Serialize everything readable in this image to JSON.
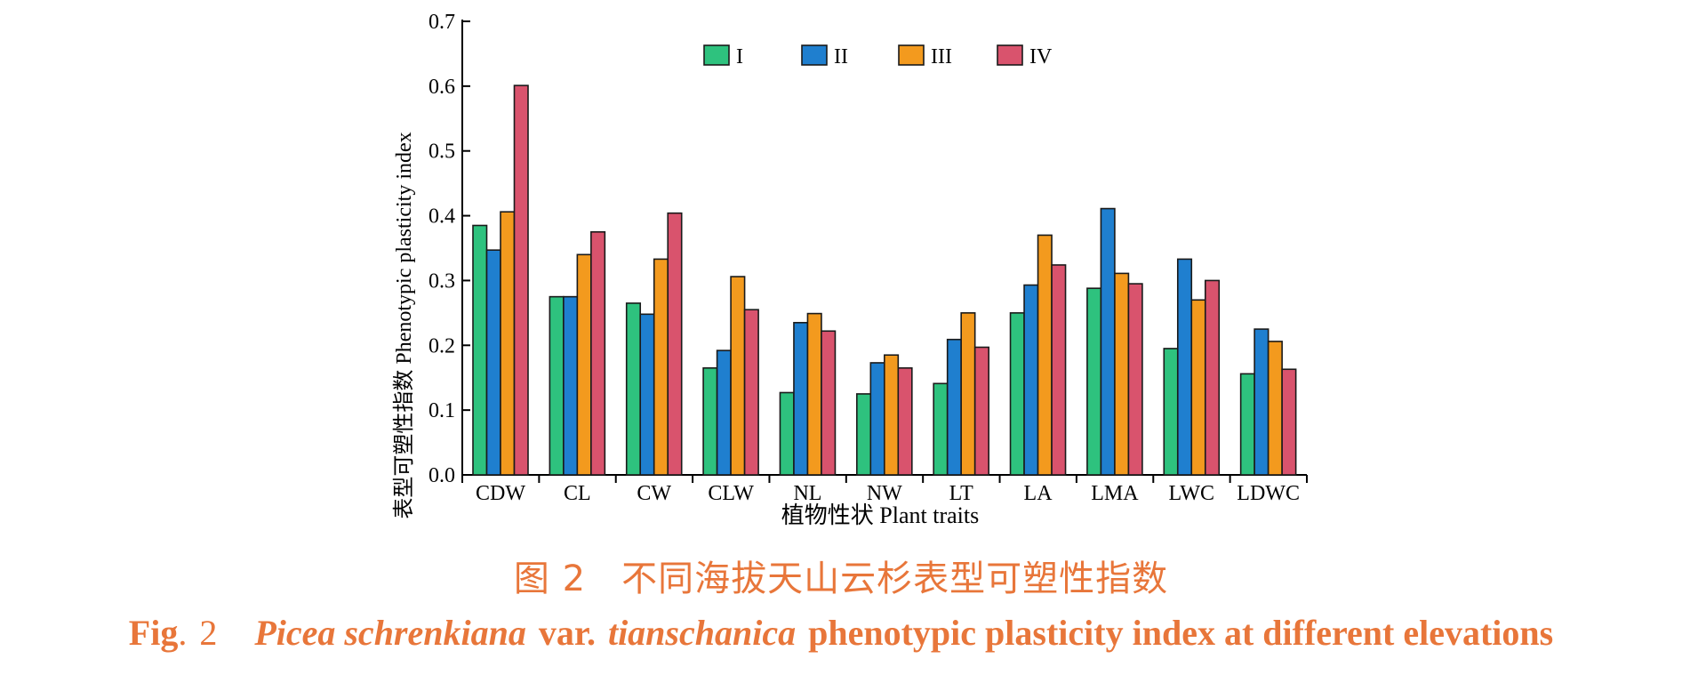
{
  "chart_data": {
    "type": "bar",
    "categories": [
      "CDW",
      "CL",
      "CW",
      "CLW",
      "NL",
      "NW",
      "LT",
      "LA",
      "LMA",
      "LWC",
      "LDWC"
    ],
    "series": [
      {
        "name": "I",
        "color": "#2ec27e",
        "values": [
          0.385,
          0.275,
          0.265,
          0.165,
          0.127,
          0.125,
          0.141,
          0.25,
          0.288,
          0.195,
          0.156
        ]
      },
      {
        "name": "II",
        "color": "#1f7fcf",
        "values": [
          0.347,
          0.275,
          0.248,
          0.192,
          0.235,
          0.173,
          0.209,
          0.293,
          0.411,
          0.333,
          0.225
        ]
      },
      {
        "name": "III",
        "color": "#f39a1e",
        "values": [
          0.406,
          0.34,
          0.333,
          0.306,
          0.249,
          0.185,
          0.25,
          0.37,
          0.311,
          0.27,
          0.206
        ]
      },
      {
        "name": "IV",
        "color": "#d9536d",
        "values": [
          0.601,
          0.375,
          0.404,
          0.255,
          0.222,
          0.165,
          0.197,
          0.324,
          0.295,
          0.3,
          0.163
        ]
      }
    ],
    "ylabel": "表型可塑性指数 Phenotypic plasticity index",
    "xlabel": "植物性状 Plant traits",
    "ylim": [
      0,
      0.7
    ],
    "yticks": [
      "0.0",
      "0.1",
      "0.2",
      "0.3",
      "0.4",
      "0.5",
      "0.6",
      "0.7"
    ],
    "legend": "top-center",
    "grid": false
  },
  "caption": {
    "cn_number": "图 2",
    "cn_title": "不同海拔天山云杉表型可塑性指数",
    "en_fig": "Fig",
    "en_dot": ".",
    "en_num": "2",
    "en_species": "Picea schrenkiana",
    "en_var": "var.",
    "en_variety": "tianschanica",
    "en_rest": "phenotypic plasticity index at different elevations"
  }
}
